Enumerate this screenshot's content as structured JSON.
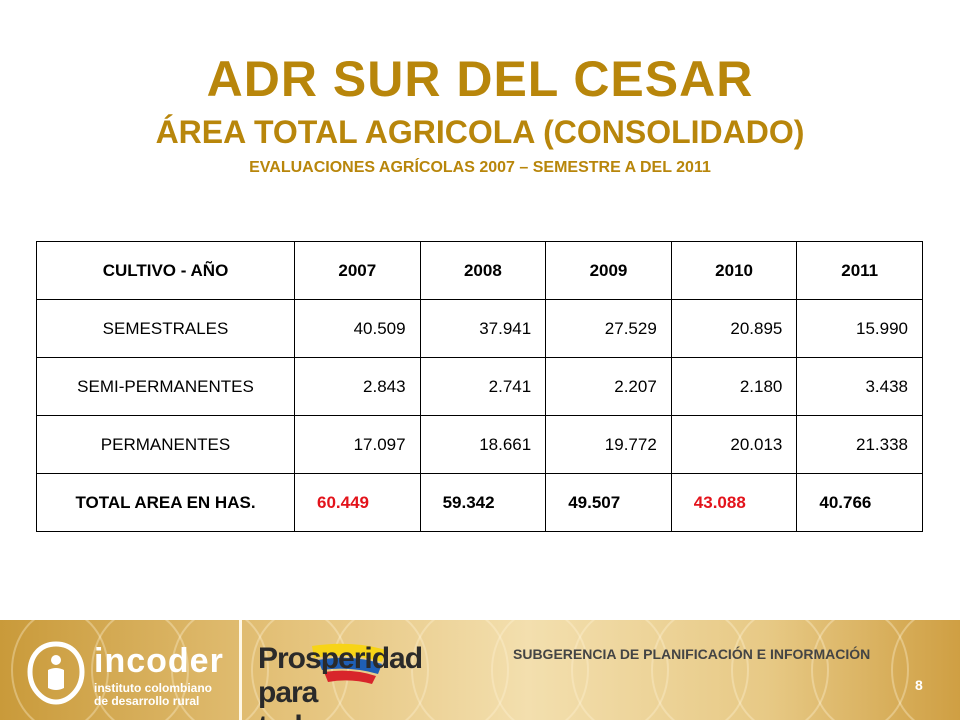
{
  "title": {
    "main": "ADR SUR DEL CESAR",
    "sub": "ÁREA TOTAL AGRICOLA  (CONSOLIDADO)",
    "small": "EVALUACIONES AGRÍCOLAS 2007 – SEMESTRE A DEL 2011"
  },
  "table": {
    "headers": [
      "CULTIVO  - AÑO",
      "2007",
      "2008",
      "2009",
      "2010",
      "2011"
    ],
    "rows": [
      {
        "label": "SEMESTRALES",
        "values": [
          "40.509",
          "37.941",
          "27.529",
          "20.895",
          "15.990"
        ]
      },
      {
        "label": "SEMI-PERMANENTES",
        "values": [
          "2.843",
          "2.741",
          "2.207",
          "2.180",
          "3.438"
        ]
      },
      {
        "label": "PERMANENTES",
        "values": [
          "17.097",
          "18.661",
          "19.772",
          "20.013",
          "21.338"
        ]
      }
    ],
    "total": {
      "label": "TOTAL AREA EN HAS.",
      "values": [
        "60.449",
        "59.342",
        "49.507",
        "43.088",
        "40.766"
      ]
    }
  },
  "footer": {
    "logo_word": "incoder",
    "logo_line1": "instituto colombiano",
    "logo_line2": "de desarrollo rural",
    "slogan_line1": "Prosperidad",
    "slogan_line2": "para todos",
    "subgerencia": "SUBGERENCIA DE PLANIFICACIÓN E INFORMACIÓN",
    "page_number": "8"
  },
  "colors": {
    "title": "#b8860b",
    "highlight": "#e3131b",
    "footer_gold": "#c99a3a"
  },
  "icons": {
    "incoder_logo": "incoder-logo-icon",
    "flag_swoosh": "colombia-flag-swoosh-icon"
  }
}
